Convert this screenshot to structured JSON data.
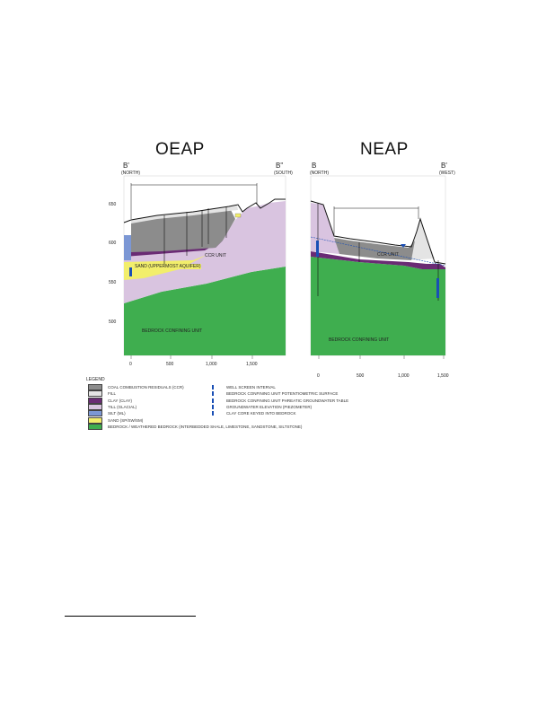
{
  "panels": {
    "left": {
      "title": "OEAP",
      "end_left": "B'",
      "end_left_sub": "(NORTH)",
      "end_right": "B\"",
      "end_right_sub": "(SOUTH)",
      "y_ticks": [
        "650",
        "600",
        "550",
        "500"
      ],
      "x_ticks": [
        "0",
        "500",
        "1,000",
        "1,500"
      ],
      "aquifer_label": "SAND (UPPERMOST AQUIFER)",
      "ccr_label": "CCR UNIT",
      "bedrock_label": "BEDROCK CONFINING UNIT"
    },
    "right": {
      "title": "NEAP",
      "end_left": "B",
      "end_left_sub": "(NORTH)",
      "end_right": "B'",
      "end_right_sub": "(WEST)",
      "x_ticks": [
        "0",
        "500",
        "1,000",
        "1,500"
      ],
      "ccr_label": "CCR UNIT",
      "bedrock_label": "BEDROCK CONFINING UNIT"
    }
  },
  "legend": {
    "heading": "LEGEND",
    "left_items": [
      {
        "label": "COAL COMBUSTION RESIDUALS (CCR)",
        "color": "#8c8c8c"
      },
      {
        "label": "FILL",
        "color": "#e4e4e4"
      },
      {
        "label": "CLAY (CLAY)",
        "color": "#6a2b74"
      },
      {
        "label": "TILL (GLACIAL)",
        "color": "#d9c4e0"
      },
      {
        "label": "SILT (ML)",
        "color": "#7c97d4"
      },
      {
        "label": "SAND (SP/SW/SM)",
        "color": "#f2ee6b"
      },
      {
        "label": "BEDROCK / WEATHERED BEDROCK (INTERBEDDED SHALE, LIMESTONE, SANDSTONE, SILTSTONE)",
        "color": "#3fae4f"
      }
    ],
    "right_items": [
      {
        "label": "WELL SCREEN INTERVAL"
      },
      {
        "label": "BEDROCK CONFINING UNIT POTENTIOMETRIC SURFACE"
      },
      {
        "label": "BEDROCK CONFINING UNIT PHREATIC GROUNDWATER TABLE"
      },
      {
        "label": "GROUNDWATER ELEVATION (PIEZOMETER)"
      },
      {
        "label": "CLAY CORE KEYED INTO BEDROCK"
      }
    ]
  },
  "colors": {
    "ccr": "#8c8c8c",
    "till": "#d9c4e0",
    "clay": "#6a2b74",
    "bedrock": "#3fae4f",
    "sand": "#f2ee6b",
    "silt": "#7c97d4",
    "fill": "#e4e4e4"
  }
}
